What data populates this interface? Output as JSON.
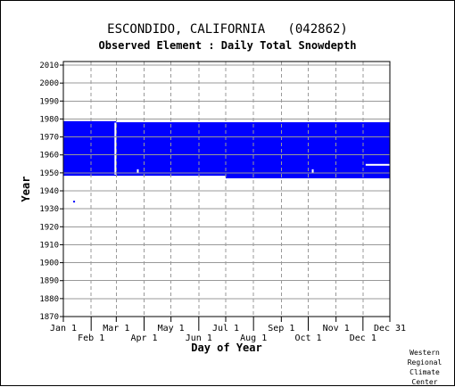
{
  "header": {
    "title": "ESCONDIDO, CALIFORNIA   (042862)",
    "subtitle": "Observed Element : Daily Total Snowdepth"
  },
  "credit": [
    "Western",
    "Regional",
    "Climate",
    "Center"
  ],
  "chart_data": {
    "type": "heatmap",
    "title": "ESCONDIDO, CALIFORNIA   (042862)",
    "subtitle": "Observed Element : Daily Total Snowdepth",
    "xlabel": "Day of Year",
    "ylabel": "Year",
    "xlim": [
      1,
      365
    ],
    "ylim": [
      1870,
      2012
    ],
    "x_ticks_top_row": [
      {
        "label": "Jan 1",
        "day": 1
      },
      {
        "label": "Mar 1",
        "day": 60
      },
      {
        "label": "May 1",
        "day": 121
      },
      {
        "label": "Jul 1",
        "day": 182
      },
      {
        "label": "Sep 1",
        "day": 244
      },
      {
        "label": "Nov 1",
        "day": 305
      },
      {
        "label": "Dec 31",
        "day": 365
      }
    ],
    "x_ticks_bottom_row": [
      {
        "label": "Feb 1",
        "day": 32
      },
      {
        "label": "Apr 1",
        "day": 91
      },
      {
        "label": "Jun 1",
        "day": 152
      },
      {
        "label": "Aug 1",
        "day": 213
      },
      {
        "label": "Oct 1",
        "day": 274
      },
      {
        "label": "Dec 1",
        "day": 335
      }
    ],
    "y_ticks": [
      1870,
      1880,
      1890,
      1900,
      1910,
      1920,
      1930,
      1940,
      1950,
      1960,
      1970,
      1980,
      1990,
      2000,
      2010
    ],
    "grid": true,
    "data_color": "#0000ff",
    "regions": [
      {
        "day_start": 1,
        "day_end": 60,
        "year_start": 1948.4,
        "year_end": 1978.8
      },
      {
        "day_start": 60,
        "day_end": 182,
        "year_start": 1948.4,
        "year_end": 1978.2
      },
      {
        "day_start": 182,
        "day_end": 365,
        "year_start": 1947.0,
        "year_end": 1978.2
      }
    ],
    "isolated_points": [
      {
        "day": 13,
        "year": 1934
      },
      {
        "day": 352,
        "year": 1966
      }
    ],
    "missing_gaps": [
      {
        "day_start": 58,
        "day_end": 60,
        "year_start": 1949,
        "year_end": 1978
      },
      {
        "day_start": 83,
        "day_end": 85,
        "year_start": 1950,
        "year_end": 1952
      },
      {
        "day_start": 278,
        "day_end": 280,
        "year_start": 1950,
        "year_end": 1952
      },
      {
        "day_start": 338,
        "day_end": 365,
        "year_start": 1954,
        "year_end": 1955
      }
    ]
  }
}
